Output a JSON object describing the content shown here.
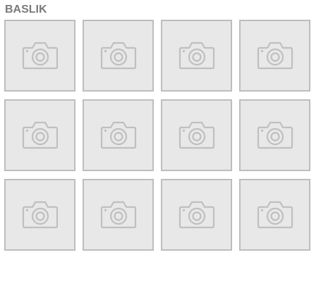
{
  "header": {
    "title": "BASLIK"
  },
  "gallery": {
    "tile_count": 12,
    "columns": 4,
    "placeholder_icon": "camera-icon",
    "colors": {
      "tile_background": "#e8e8e8",
      "tile_border": "#bdbdbd",
      "icon": "#bfbfbf",
      "title": "#7a7a7a"
    }
  }
}
